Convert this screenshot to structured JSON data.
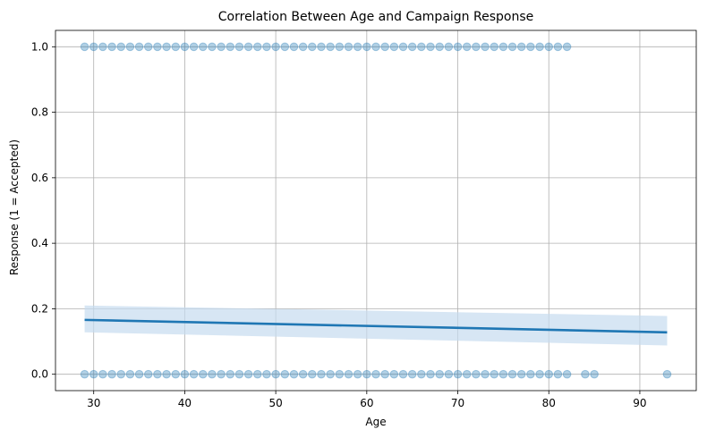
{
  "chart_data": {
    "type": "scatter",
    "title": "Correlation Between Age and Campaign Response",
    "xlabel": "Age",
    "ylabel": "Response (1 = Accepted)",
    "xlim": [
      25.8,
      96.2
    ],
    "ylim": [
      -0.05,
      1.05
    ],
    "xticks": [
      30,
      40,
      50,
      60,
      70,
      80,
      90
    ],
    "yticks": [
      0.0,
      0.2,
      0.4,
      0.6,
      0.8,
      1.0
    ],
    "ytick_labels": [
      "0.0",
      "0.2",
      "0.4",
      "0.6",
      "0.8",
      "1.0"
    ],
    "grid": true,
    "point_color": "#1f77b4",
    "point_alpha": 0.35,
    "points_response_1": [
      29,
      30,
      31,
      32,
      33,
      34,
      35,
      36,
      37,
      38,
      39,
      40,
      41,
      42,
      43,
      44,
      45,
      46,
      47,
      48,
      49,
      50,
      51,
      52,
      53,
      54,
      55,
      56,
      57,
      58,
      59,
      60,
      61,
      62,
      63,
      64,
      65,
      66,
      67,
      68,
      69,
      70,
      71,
      72,
      73,
      74,
      75,
      76,
      77,
      78,
      79,
      80,
      81,
      82
    ],
    "points_response_0": [
      29,
      30,
      31,
      32,
      33,
      34,
      35,
      36,
      37,
      38,
      39,
      40,
      41,
      42,
      43,
      44,
      45,
      46,
      47,
      48,
      49,
      50,
      51,
      52,
      53,
      54,
      55,
      56,
      57,
      58,
      59,
      60,
      61,
      62,
      63,
      64,
      65,
      66,
      67,
      68,
      69,
      70,
      71,
      72,
      73,
      74,
      75,
      76,
      77,
      78,
      79,
      80,
      81,
      82,
      84,
      85,
      93
    ],
    "regression": {
      "x": [
        29,
        93
      ],
      "y": [
        0.166,
        0.128
      ],
      "ci_upper": [
        0.21,
        0.178
      ],
      "ci_lower": [
        0.128,
        0.088
      ],
      "color": "#1f77b4",
      "ci_color": "#c6dbef"
    }
  }
}
